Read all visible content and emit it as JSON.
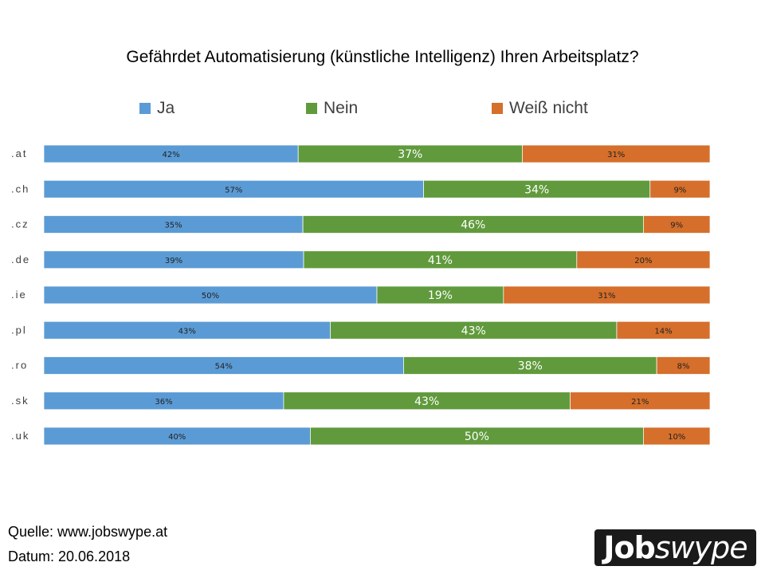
{
  "chart_data": {
    "type": "bar",
    "orientation": "horizontal",
    "stacked": "percent",
    "title": "Gefährdet Automatisierung (künstliche Intelligenz) Ihren Arbeitsplatz?",
    "categories": [
      ".at",
      ".ch",
      ".cz",
      ".de",
      ".ie",
      ".pl",
      ".ro",
      ".sk",
      ".uk"
    ],
    "series": [
      {
        "name": "Ja",
        "color": "#5b9bd5",
        "values": [
          42,
          57,
          35,
          39,
          50,
          43,
          54,
          36,
          40
        ]
      },
      {
        "name": "Nein",
        "color": "#609a3c",
        "values": [
          37,
          34,
          46,
          41,
          19,
          43,
          38,
          43,
          50
        ]
      },
      {
        "name": "Weiß nicht",
        "color": "#d56f2b",
        "values": [
          31,
          9,
          9,
          20,
          31,
          14,
          8,
          21,
          10
        ]
      }
    ],
    "value_suffix": "%",
    "legend_position": "top",
    "grid": false
  },
  "footer": {
    "source": "Quelle: www.jobswype.at",
    "date": "Datum: 20.06.2018"
  },
  "logo": {
    "part1": "Job",
    "part2": "swype"
  }
}
